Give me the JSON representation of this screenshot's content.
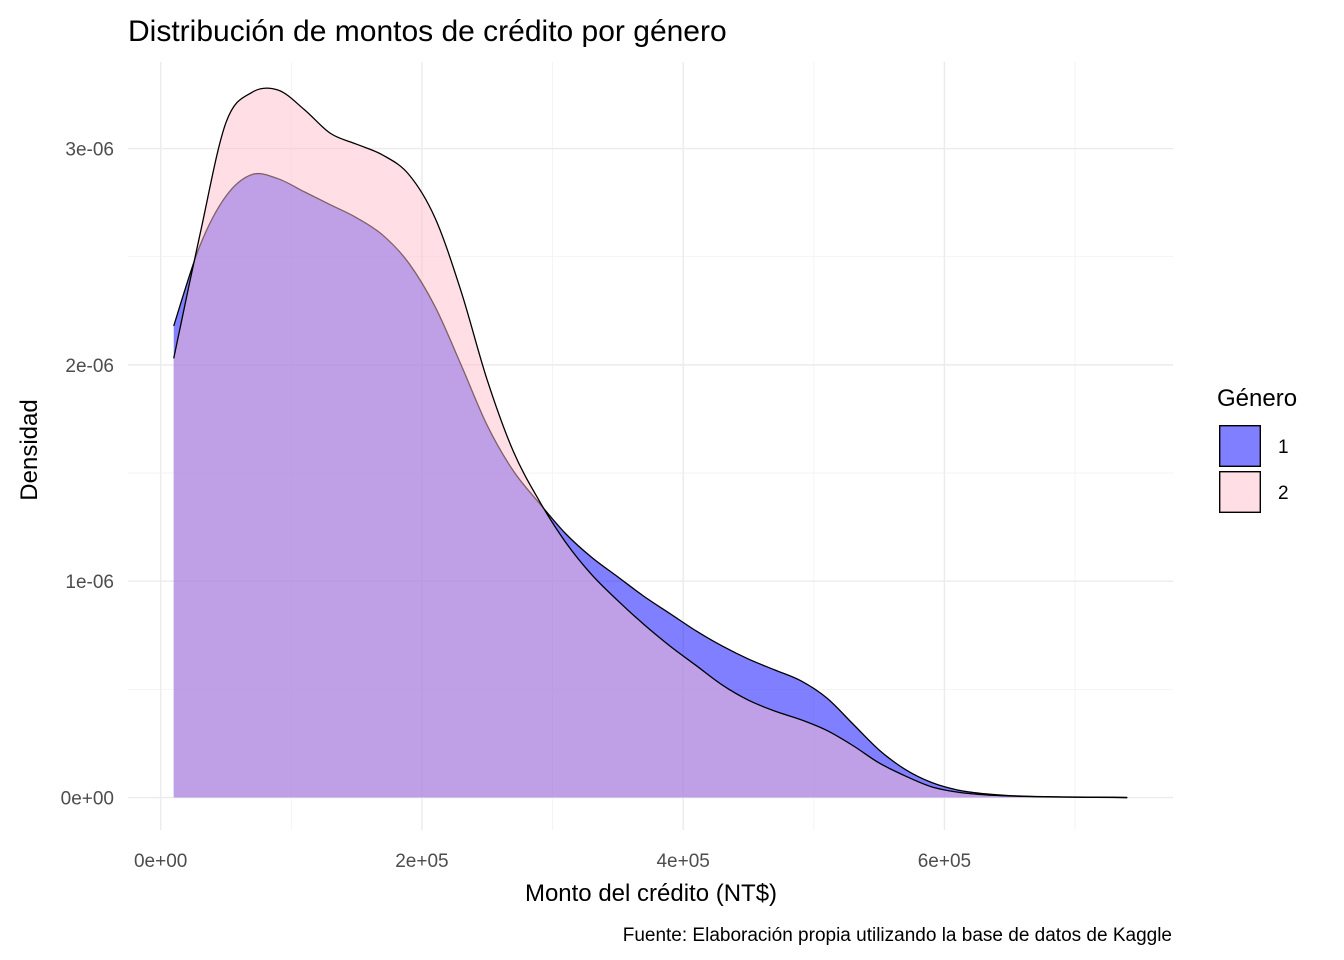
{
  "chart_data": {
    "type": "area",
    "title": "Distribución de montos de crédito por género",
    "xlabel": "Monto del crédito (NT$)",
    "ylabel": "Densidad",
    "caption": "Fuente: Elaboración propia utilizando la base de datos de Kaggle",
    "xlim": [
      -25000,
      775000
    ],
    "ylim": [
      -1.5e-07,
      3.4e-06
    ],
    "x_ticks": [
      0,
      200000,
      400000,
      600000
    ],
    "x_tick_labels": [
      "0e+00",
      "2e+05",
      "4e+05",
      "6e+05"
    ],
    "y_ticks": [
      0,
      1e-06,
      2e-06,
      3e-06
    ],
    "y_tick_labels": [
      "0e+00",
      "1e-06",
      "2e-06",
      "3e-06"
    ],
    "grid": true,
    "legend": {
      "title": "Género",
      "position": "right"
    },
    "series": [
      {
        "name": "1",
        "color": "#0000ff",
        "alpha": 0.5,
        "x": [
          10000,
          30000,
          50000,
          70000,
          90000,
          110000,
          130000,
          150000,
          170000,
          190000,
          210000,
          230000,
          250000,
          270000,
          290000,
          310000,
          330000,
          350000,
          370000,
          390000,
          410000,
          430000,
          450000,
          470000,
          490000,
          510000,
          530000,
          550000,
          570000,
          590000,
          610000,
          630000,
          650000,
          670000,
          690000,
          710000,
          730000,
          740000
        ],
        "y": [
          2.18e-06,
          2.55e-06,
          2.78e-06,
          2.88e-06,
          2.86e-06,
          2.8e-06,
          2.74e-06,
          2.68e-06,
          2.6e-06,
          2.47e-06,
          2.27e-06,
          2e-06,
          1.72e-06,
          1.51e-06,
          1.36e-06,
          1.22e-06,
          1.11e-06,
          1.02e-06,
          9.3e-07,
          8.5e-07,
          7.7e-07,
          7e-07,
          6.4e-07,
          5.9e-07,
          5.4e-07,
          4.6e-07,
          3.4e-07,
          2.2e-07,
          1.3e-07,
          7e-08,
          3.5e-08,
          1.8e-08,
          9e-09,
          5e-09,
          3e-09,
          2e-09,
          1e-09,
          0.0
        ]
      },
      {
        "name": "2",
        "color": "#ffc0cb",
        "alpha": 0.5,
        "x": [
          10000,
          30000,
          50000,
          70000,
          90000,
          110000,
          130000,
          150000,
          170000,
          190000,
          210000,
          230000,
          250000,
          270000,
          290000,
          310000,
          330000,
          350000,
          370000,
          390000,
          410000,
          430000,
          450000,
          470000,
          490000,
          510000,
          530000,
          550000,
          570000,
          590000,
          610000,
          630000,
          650000,
          670000,
          690000,
          710000,
          730000,
          740000
        ],
        "y": [
          2.03e-06,
          2.6e-06,
          3.12e-06,
          3.26e-06,
          3.27e-06,
          3.18e-06,
          3.07e-06,
          3.02e-06,
          2.97e-06,
          2.88e-06,
          2.68e-06,
          2.34e-06,
          1.93e-06,
          1.6e-06,
          1.37e-06,
          1.18e-06,
          1.03e-06,
          9.1e-07,
          8e-07,
          7e-07,
          6.1e-07,
          5.2e-07,
          4.5e-07,
          4e-07,
          3.6e-07,
          3.1e-07,
          2.4e-07,
          1.6e-07,
          1e-07,
          5e-08,
          2.5e-08,
          1.3e-08,
          7e-09,
          4e-09,
          2e-09,
          1e-09,
          5e-10,
          0.0
        ]
      }
    ]
  }
}
